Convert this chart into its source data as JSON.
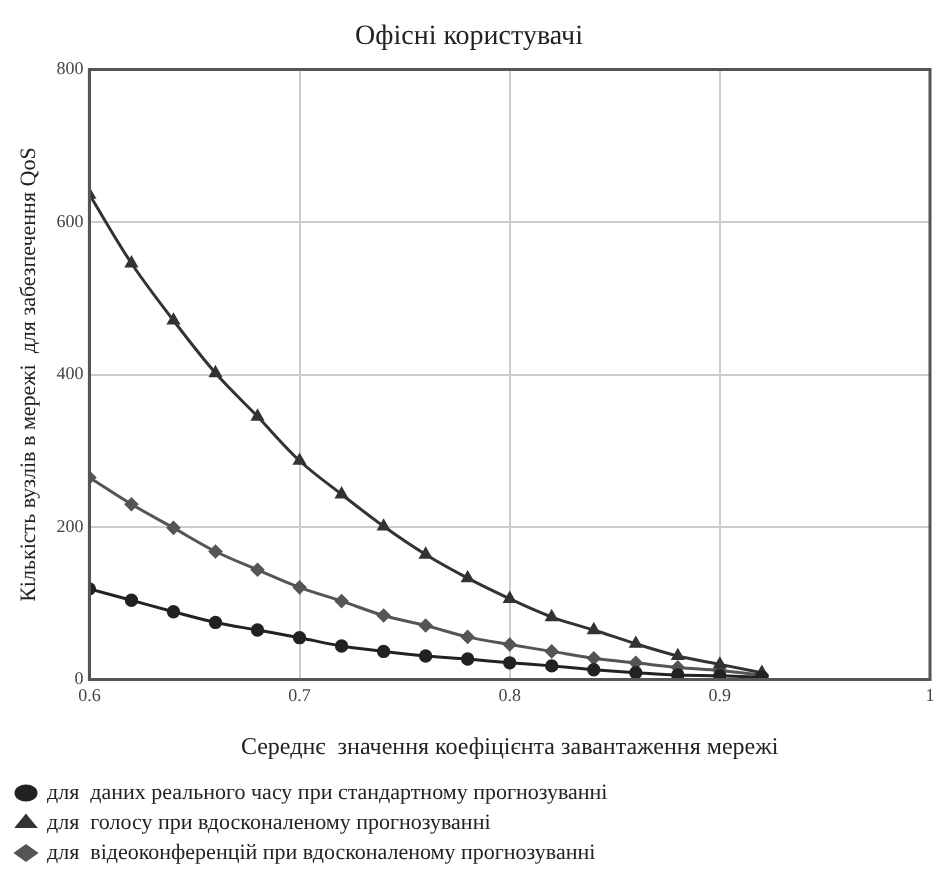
{
  "chart_data": {
    "type": "line",
    "title": "Офісні користувачі",
    "xlabel": "Середнє  значення коефіцієнта завантаження мережі",
    "ylabel": "Кількість вузлів в мережі  для забезпечення QoS",
    "x": [
      0.6,
      0.62,
      0.64,
      0.66,
      0.68,
      0.7,
      0.72,
      0.74,
      0.76,
      0.78,
      0.8,
      0.82,
      0.84,
      0.86,
      0.88,
      0.9,
      0.92
    ],
    "xlim": [
      0.6,
      1
    ],
    "xticks": [
      0.6,
      0.7,
      0.8,
      0.9,
      1
    ],
    "ylim": [
      0,
      800
    ],
    "yticks": [
      0,
      200,
      400,
      600,
      800
    ],
    "grid": true,
    "legend": "bottom",
    "line_style": "solid",
    "series": [
      {
        "name": "для  даних реального часу при стандартному прогнозуванні",
        "color": "#222222",
        "marker": "circle",
        "values": [
          119,
          104,
          89,
          75,
          65,
          55,
          44,
          37,
          31,
          27,
          22,
          18,
          13,
          9,
          6,
          5,
          3
        ]
      },
      {
        "name": "для  голосу при вдосконаленому прогнозуванні",
        "color": "#333333",
        "marker": "triangle",
        "values": [
          636,
          546,
          471,
          402,
          345,
          287,
          243,
          201,
          164,
          133,
          106,
          82,
          65,
          47,
          31,
          20,
          9
        ]
      },
      {
        "name": "для  відеоконференцій при вдосконаленому прогнозуванні",
        "color": "#555555",
        "marker": "diamond",
        "values": [
          265,
          230,
          199,
          168,
          144,
          121,
          103,
          84,
          71,
          56,
          46,
          37,
          28,
          22,
          16,
          12,
          6
        ]
      }
    ]
  }
}
